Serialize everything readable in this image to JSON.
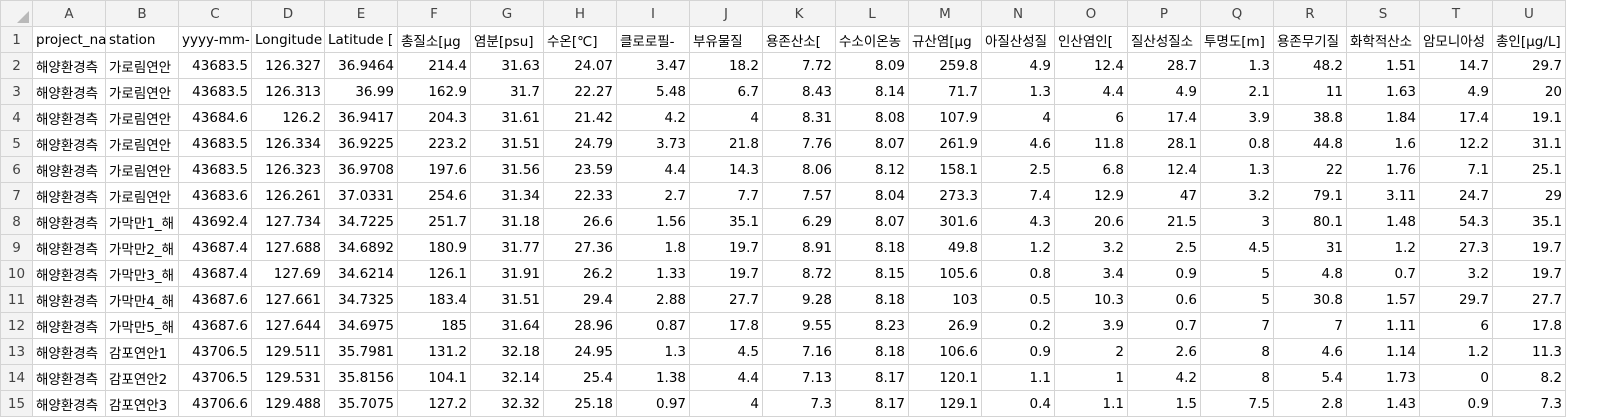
{
  "sheet": {
    "column_letters": [
      "A",
      "B",
      "C",
      "D",
      "E",
      "F",
      "G",
      "H",
      "I",
      "J",
      "K",
      "L",
      "M",
      "N",
      "O",
      "P",
      "Q",
      "R",
      "S",
      "T",
      "U"
    ],
    "header_row": [
      "project_na",
      "station",
      "yyyy-mm-",
      "Longitude",
      "Latitude [",
      "총질소[μg",
      "염분[psu]",
      "수온[℃]",
      "클로로필-",
      "부유물질",
      "용존산소[",
      "수소이온농",
      "규산염[μg",
      "아질산성질",
      "인산염인[",
      "질산성질소",
      "투명도[m]",
      "용존무기질",
      "화학적산소",
      "암모니아성",
      "총인[μg/L]"
    ],
    "rows": [
      [
        "해양환경측",
        "가로림연안",
        "43683.5",
        "126.327",
        "36.9464",
        "214.4",
        "31.63",
        "24.07",
        "3.47",
        "18.2",
        "7.72",
        "8.09",
        "259.8",
        "4.9",
        "12.4",
        "28.7",
        "1.3",
        "48.2",
        "1.51",
        "14.7",
        "29.7"
      ],
      [
        "해양환경측",
        "가로림연안",
        "43683.5",
        "126.313",
        "36.99",
        "162.9",
        "31.7",
        "22.27",
        "5.48",
        "6.7",
        "8.43",
        "8.14",
        "71.7",
        "1.3",
        "4.4",
        "4.9",
        "2.1",
        "11",
        "1.63",
        "4.9",
        "20"
      ],
      [
        "해양환경측",
        "가로림연안",
        "43684.6",
        "126.2",
        "36.9417",
        "204.3",
        "31.61",
        "21.42",
        "4.2",
        "4",
        "8.31",
        "8.08",
        "107.9",
        "4",
        "6",
        "17.4",
        "3.9",
        "38.8",
        "1.84",
        "17.4",
        "19.1"
      ],
      [
        "해양환경측",
        "가로림연안",
        "43683.5",
        "126.334",
        "36.9225",
        "223.2",
        "31.51",
        "24.79",
        "3.73",
        "21.8",
        "7.76",
        "8.07",
        "261.9",
        "4.6",
        "11.8",
        "28.1",
        "0.8",
        "44.8",
        "1.6",
        "12.2",
        "31.1"
      ],
      [
        "해양환경측",
        "가로림연안",
        "43683.5",
        "126.323",
        "36.9708",
        "197.6",
        "31.56",
        "23.59",
        "4.4",
        "14.3",
        "8.06",
        "8.12",
        "158.1",
        "2.5",
        "6.8",
        "12.4",
        "1.3",
        "22",
        "1.76",
        "7.1",
        "25.1"
      ],
      [
        "해양환경측",
        "가로림연안",
        "43683.6",
        "126.261",
        "37.0331",
        "254.6",
        "31.34",
        "22.33",
        "2.7",
        "7.7",
        "7.57",
        "8.04",
        "273.3",
        "7.4",
        "12.9",
        "47",
        "3.2",
        "79.1",
        "3.11",
        "24.7",
        "29"
      ],
      [
        "해양환경측",
        "가막만1_해",
        "43692.4",
        "127.734",
        "34.7225",
        "251.7",
        "31.18",
        "26.6",
        "1.56",
        "35.1",
        "6.29",
        "8.07",
        "301.6",
        "4.3",
        "20.6",
        "21.5",
        "3",
        "80.1",
        "1.48",
        "54.3",
        "35.1"
      ],
      [
        "해양환경측",
        "가막만2_해",
        "43687.4",
        "127.688",
        "34.6892",
        "180.9",
        "31.77",
        "27.36",
        "1.8",
        "19.7",
        "8.91",
        "8.18",
        "49.8",
        "1.2",
        "3.2",
        "2.5",
        "4.5",
        "31",
        "1.2",
        "27.3",
        "19.7"
      ],
      [
        "해양환경측",
        "가막만3_해",
        "43687.4",
        "127.69",
        "34.6214",
        "126.1",
        "31.91",
        "26.2",
        "1.33",
        "19.7",
        "8.72",
        "8.15",
        "105.6",
        "0.8",
        "3.4",
        "0.9",
        "5",
        "4.8",
        "0.7",
        "3.2",
        "19.7"
      ],
      [
        "해양환경측",
        "가막만4_해",
        "43687.6",
        "127.661",
        "34.7325",
        "183.4",
        "31.51",
        "29.4",
        "2.88",
        "27.7",
        "9.28",
        "8.18",
        "103",
        "0.5",
        "10.3",
        "0.6",
        "5",
        "30.8",
        "1.57",
        "29.7",
        "27.7"
      ],
      [
        "해양환경측",
        "가막만5_해",
        "43687.6",
        "127.644",
        "34.6975",
        "185",
        "31.64",
        "28.96",
        "0.87",
        "17.8",
        "9.55",
        "8.23",
        "26.9",
        "0.2",
        "3.9",
        "0.7",
        "7",
        "7",
        "1.11",
        "6",
        "17.8"
      ],
      [
        "해양환경측",
        "감포연안1",
        "43706.5",
        "129.511",
        "35.7981",
        "131.2",
        "32.18",
        "24.95",
        "1.3",
        "4.5",
        "7.16",
        "8.18",
        "106.6",
        "0.9",
        "2",
        "2.6",
        "8",
        "4.6",
        "1.14",
        "1.2",
        "11.3"
      ],
      [
        "해양환경측",
        "감포연안2",
        "43706.5",
        "129.531",
        "35.8156",
        "104.1",
        "32.14",
        "25.4",
        "1.38",
        "4.4",
        "7.13",
        "8.17",
        "120.1",
        "1.1",
        "1",
        "4.2",
        "8",
        "5.4",
        "1.73",
        "0",
        "8.2"
      ],
      [
        "해양환경측",
        "감포연안3",
        "43706.6",
        "129.488",
        "35.7075",
        "127.2",
        "32.32",
        "25.18",
        "0.97",
        "4",
        "7.3",
        "8.17",
        "129.1",
        "0.4",
        "1.1",
        "1.5",
        "7.5",
        "2.8",
        "1.43",
        "0.9",
        "7.3"
      ]
    ]
  }
}
